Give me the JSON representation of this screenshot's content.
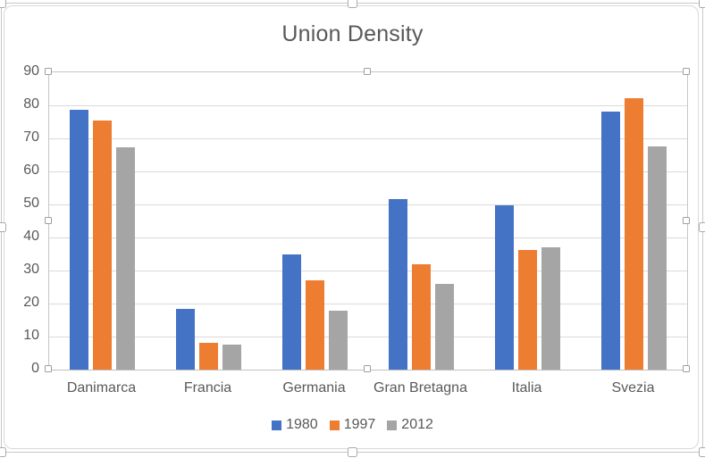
{
  "chart_data": {
    "type": "bar",
    "title": "Union Density",
    "categories": [
      "Danimarca",
      "Francia",
      "Germania",
      "Gran Bretagna",
      "Italia",
      "Svezia"
    ],
    "series": [
      {
        "name": "1980",
        "values": [
          78.6,
          18.3,
          34.9,
          51.7,
          49.6,
          78.0
        ]
      },
      {
        "name": "1997",
        "values": [
          75.3,
          8.2,
          27.0,
          32.0,
          36.2,
          82.2
        ]
      },
      {
        "name": "2012",
        "values": [
          67.2,
          7.7,
          17.9,
          26.0,
          36.9,
          67.5
        ]
      }
    ],
    "ylim": [
      0,
      90
    ],
    "ytick_step": 10,
    "ytick_labels": [
      "90",
      "80",
      "70",
      "60",
      "50",
      "40",
      "30",
      "20",
      "10",
      "0"
    ],
    "grid": true,
    "legend_position": "bottom",
    "xlabel": "",
    "ylabel": "",
    "colors": {
      "series": [
        "#4472C4",
        "#ED7D31",
        "#A5A5A5"
      ],
      "text": "#595959",
      "gridline": "#D9D9D9",
      "axis_line": "#BFBFBF",
      "chart_border": "#D9D9D9"
    }
  }
}
